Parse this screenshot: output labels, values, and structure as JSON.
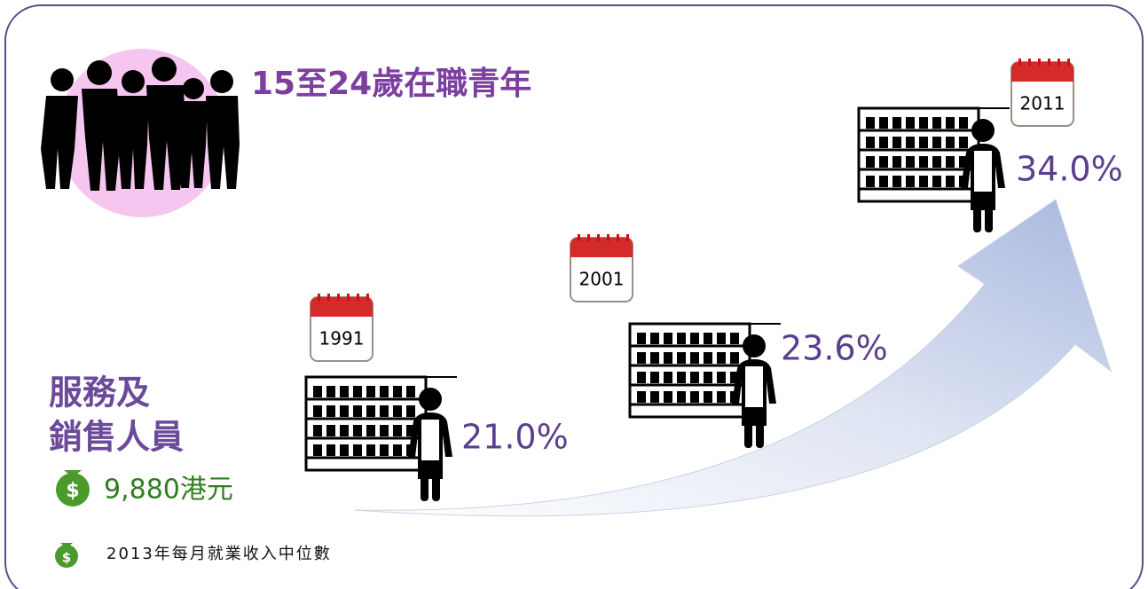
{
  "header": {
    "title": "15至24歲在職青年"
  },
  "occupation": {
    "lines": [
      "服務及",
      "銷售人員"
    ]
  },
  "income": {
    "value": "9,880港元",
    "note": "2013年每月就業收入中位數"
  },
  "milestones": [
    {
      "year": "1991",
      "percent": "21.0%"
    },
    {
      "year": "2001",
      "percent": "23.6%"
    },
    {
      "year": "2011",
      "percent": "34.0%"
    }
  ]
}
